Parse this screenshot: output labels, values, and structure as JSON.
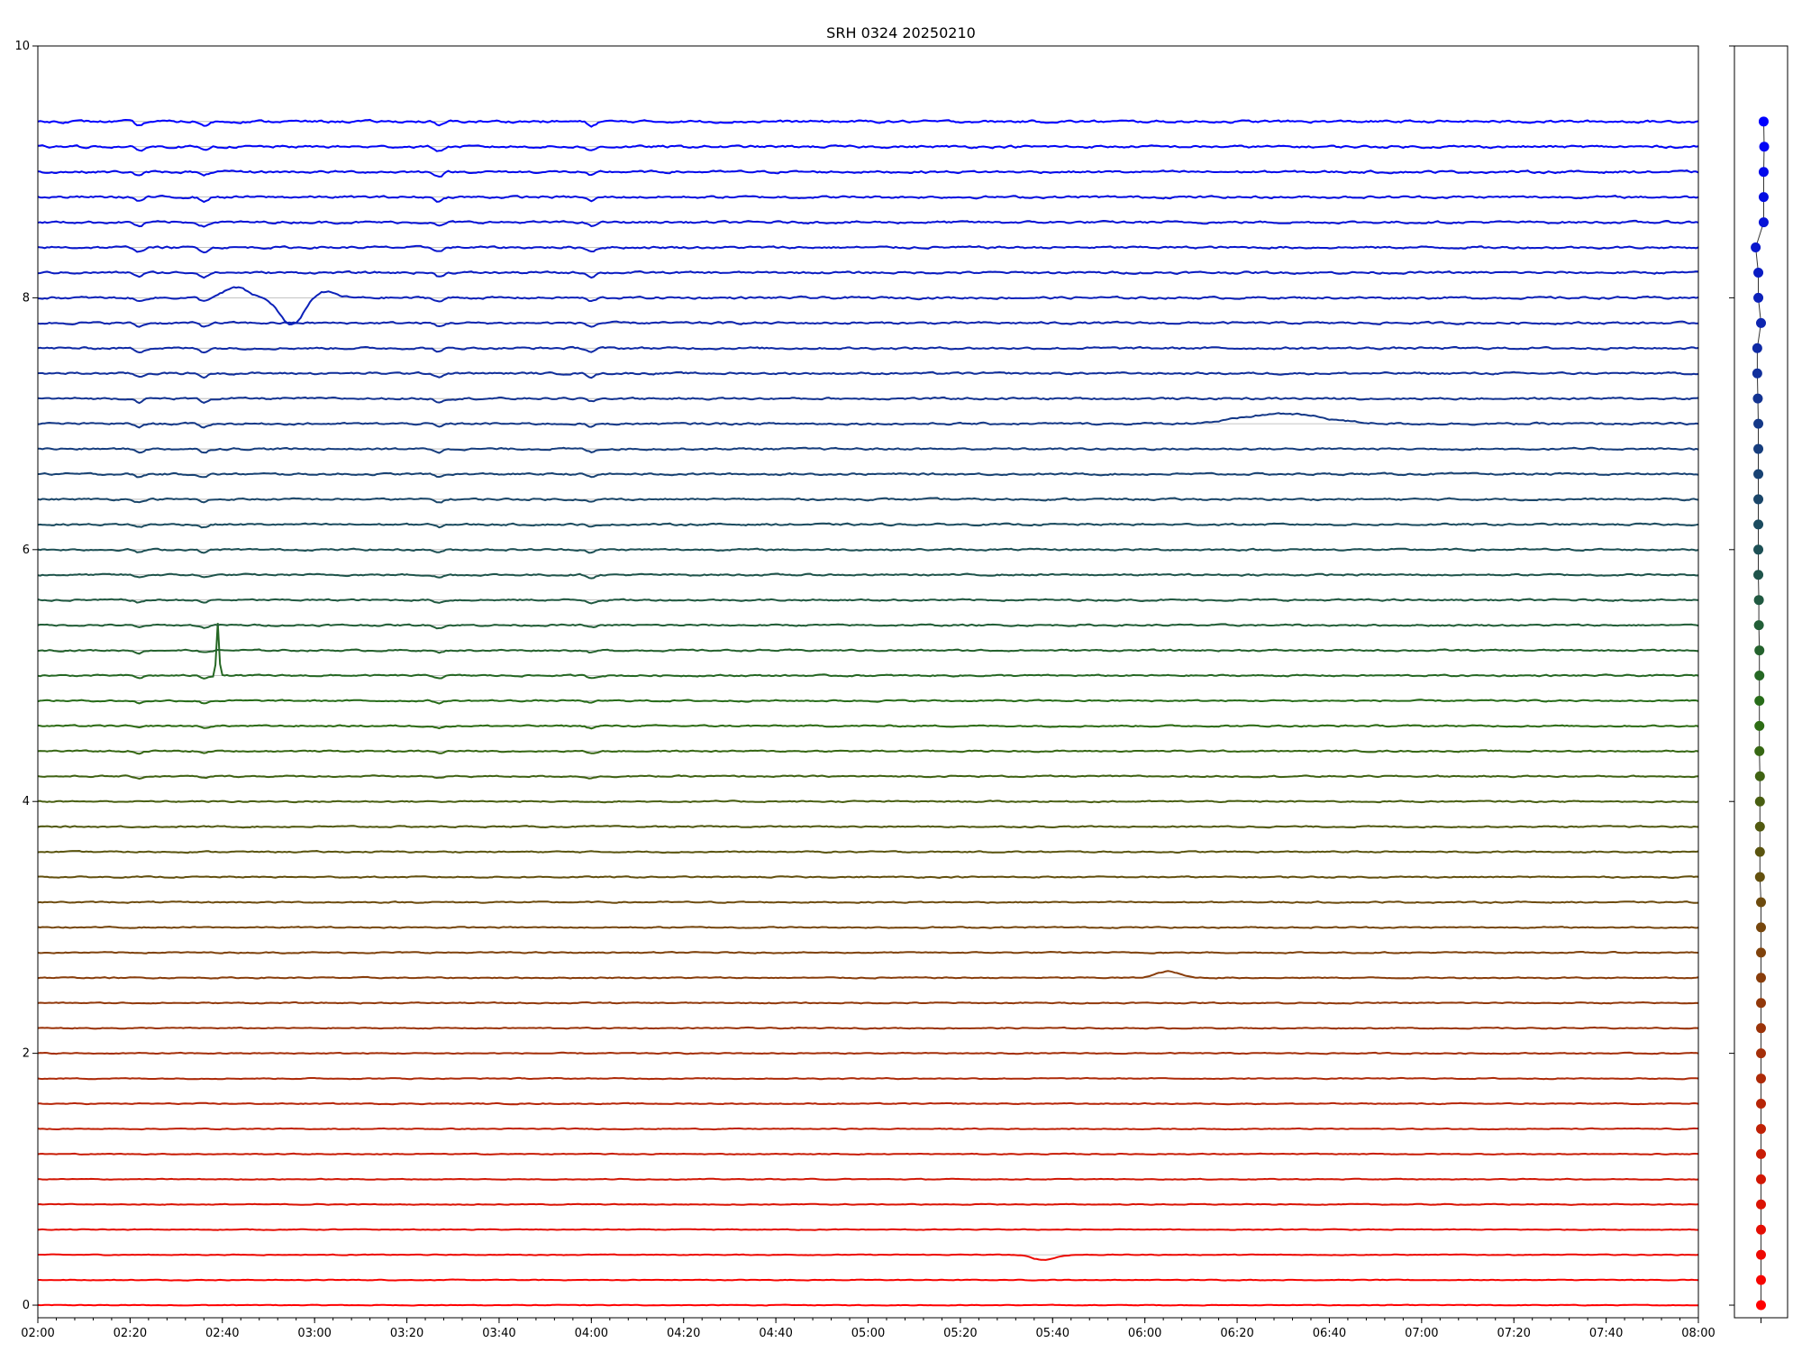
{
  "chart_data": [
    {
      "type": "line",
      "title": "SRH 0324 20250210",
      "xlabel": "",
      "ylabel": "",
      "x_range": [
        "02:00",
        "08:00"
      ],
      "ylim": [
        -0.1,
        10
      ],
      "x_tick_labels": [
        "02:00",
        "02:20",
        "02:40",
        "03:00",
        "03:20",
        "03:40",
        "04:00",
        "04:20",
        "04:40",
        "05:00",
        "05:20",
        "05:40",
        "06:00",
        "06:20",
        "06:40",
        "07:00",
        "07:20",
        "07:40",
        "08:00"
      ],
      "y_tick_labels": [
        "0",
        "2",
        "4",
        "6",
        "8",
        "10"
      ],
      "grid": "horizontal baselines at 0.2 spacing",
      "n_series": 48,
      "baseline_step": 0.2,
      "color_start": "#ff0000",
      "color_end": "#0000ff",
      "features": [
        {
          "series_index": 25,
          "time": "02:39",
          "kind": "spike",
          "amplitude": 0.42
        },
        {
          "series_index": 40,
          "time": "02:43",
          "kind": "bump",
          "amplitude": 0.08
        },
        {
          "series_index": 40,
          "time": "02:55",
          "kind": "dip",
          "amplitude": -0.22
        },
        {
          "series_index": 40,
          "time": "03:02",
          "kind": "recovery",
          "amplitude": 0.05
        },
        {
          "series_index": 13,
          "time": "06:05",
          "kind": "bump",
          "amplitude": 0.05
        },
        {
          "series_index": 2,
          "time": "05:38",
          "kind": "dip",
          "amplitude": -0.04
        },
        {
          "series_index": 35,
          "time": "06:30",
          "kind": "plateau",
          "amplitude": 0.08
        }
      ]
    },
    {
      "type": "scatter",
      "xlim": [
        -0.5,
        0.5
      ],
      "ylim": [
        -0.1,
        10
      ],
      "x_offsets": [
        0.0,
        0.0,
        0.0,
        0.0,
        0.0,
        0.0,
        0.0,
        0.0,
        0.0,
        0.0,
        0.0,
        0.0,
        0.0,
        0.0,
        0.0,
        0.0,
        0.0,
        -0.02,
        -0.02,
        -0.02,
        -0.02,
        -0.02,
        -0.03,
        -0.03,
        -0.03,
        -0.03,
        -0.03,
        -0.04,
        -0.04,
        -0.05,
        -0.05,
        -0.05,
        -0.05,
        -0.05,
        -0.05,
        -0.05,
        -0.06,
        -0.07,
        -0.07,
        0.0,
        -0.05,
        -0.05,
        -0.1,
        0.05,
        0.05,
        0.05,
        0.06,
        0.05
      ],
      "note_marker": "filled circle per series, connected by a thin dark line"
    }
  ]
}
